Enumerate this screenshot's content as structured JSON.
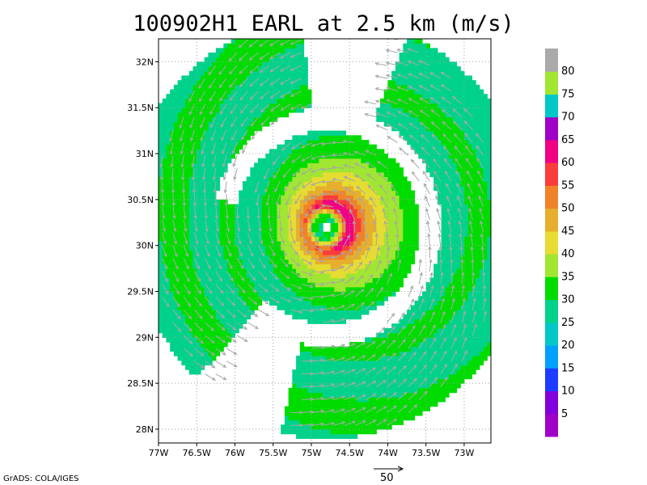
{
  "title": "100902H1 EARL at 2.5 km (m/s)",
  "credit": "GrADS: COLA/IGES",
  "vector_reference": {
    "label": "50",
    "value": 50
  },
  "colors": {
    "frame": "#000000",
    "grid": "#a0a0a0",
    "vector": "#a8a8a8"
  },
  "colorbar": {
    "levels": [
      {
        "label": "",
        "color": "#a000c8"
      },
      {
        "label": "5",
        "color": "#8200dc"
      },
      {
        "label": "10",
        "color": "#1e3cff"
      },
      {
        "label": "15",
        "color": "#00a0ff"
      },
      {
        "label": "20",
        "color": "#00c8c8"
      },
      {
        "label": "25",
        "color": "#00d28c"
      },
      {
        "label": "30",
        "color": "#00dc00"
      },
      {
        "label": "35",
        "color": "#a0e632"
      },
      {
        "label": "40",
        "color": "#e6dc32"
      },
      {
        "label": "45",
        "color": "#e6af2d"
      },
      {
        "label": "50",
        "color": "#f08228"
      },
      {
        "label": "55",
        "color": "#fa3c3c"
      },
      {
        "label": "60",
        "color": "#f00082"
      },
      {
        "label": "65",
        "color": "#a000c8"
      },
      {
        "label": "70",
        "color": "#00c8c8"
      },
      {
        "label": "75",
        "color": "#a0e632"
      },
      {
        "label": "80",
        "color": "#aaaaaa"
      }
    ]
  },
  "chart_data": {
    "type": "heatmap",
    "title": "100902H1 EARL at 2.5 km (m/s)",
    "xlabel": "",
    "ylabel": "",
    "x_ticks": [
      "77W",
      "76.5W",
      "76W",
      "75.5W",
      "75W",
      "74.5W",
      "74W",
      "73.5W",
      "73W"
    ],
    "y_ticks": [
      "28N",
      "28.5N",
      "29N",
      "29.5N",
      "30N",
      "30.5N",
      "31N",
      "31.5N",
      "32N"
    ],
    "xlim": [
      -77.0,
      -72.65
    ],
    "ylim": [
      27.85,
      32.25
    ],
    "grid": true,
    "storm_center": {
      "lon": -74.8,
      "lat": 30.2
    },
    "field": "wind speed",
    "units": "m/s",
    "max_speed_approx": 62,
    "rmw_deg_approx": 0.25,
    "legend_position": "right"
  }
}
